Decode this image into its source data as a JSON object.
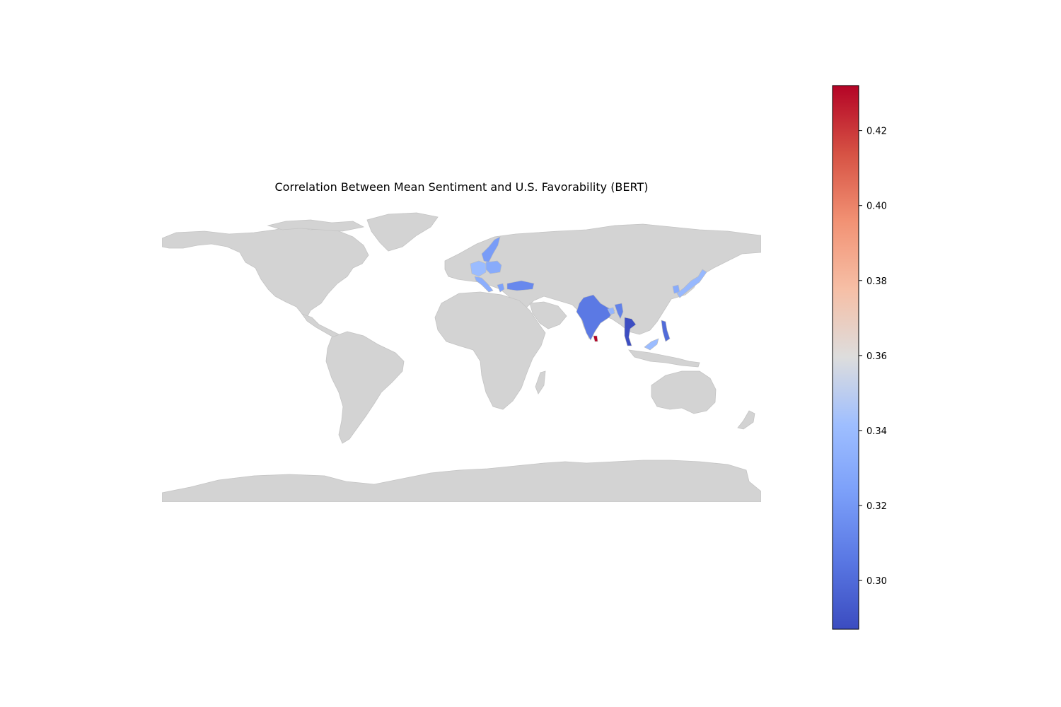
{
  "title": "Correlation Between Mean Sentiment and U.S. Favorability (BERT)",
  "colormap": "coolwarm",
  "no_data_color": "#d3d3d3",
  "colorbar": {
    "min": 0.287,
    "max": 0.432,
    "ticks": [
      0.3,
      0.32,
      0.34,
      0.36,
      0.38,
      0.4,
      0.42
    ],
    "tick_labels": [
      "0.30",
      "0.32",
      "0.34",
      "0.36",
      "0.38",
      "0.40",
      "0.42"
    ]
  },
  "chart_data": {
    "type": "choropleth",
    "title": "Correlation Between Mean Sentiment and U.S. Favorability (BERT)",
    "value_range": [
      0.287,
      0.432
    ],
    "regions": [
      {
        "name": "Sweden",
        "value": 0.322
      },
      {
        "name": "Germany",
        "value": 0.34
      },
      {
        "name": "Poland",
        "value": 0.33
      },
      {
        "name": "Italy",
        "value": 0.332
      },
      {
        "name": "Greece",
        "value": 0.325
      },
      {
        "name": "Turkey",
        "value": 0.313
      },
      {
        "name": "India",
        "value": 0.306
      },
      {
        "name": "Sri Lanka",
        "value": 0.432
      },
      {
        "name": "Bangladesh",
        "value": 0.336
      },
      {
        "name": "Myanmar",
        "value": 0.31
      },
      {
        "name": "Thailand",
        "value": 0.288
      },
      {
        "name": "Malaysia",
        "value": 0.34
      },
      {
        "name": "Philippines",
        "value": 0.3
      },
      {
        "name": "South Korea",
        "value": 0.33
      },
      {
        "name": "Japan",
        "value": 0.338
      }
    ]
  }
}
